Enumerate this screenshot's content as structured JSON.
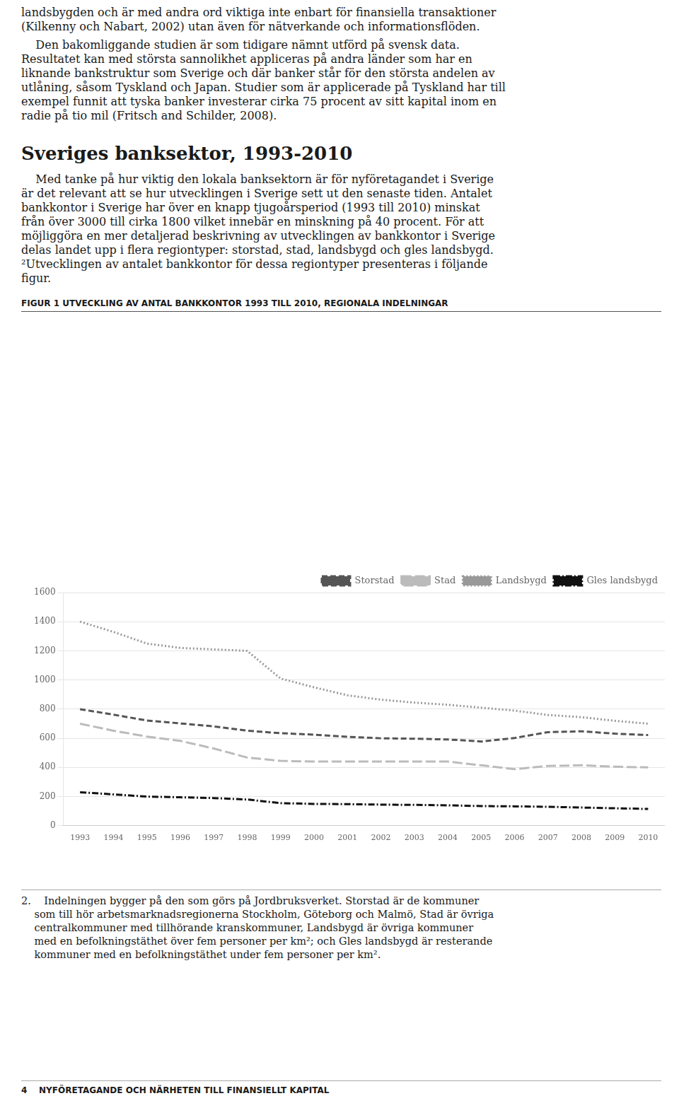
{
  "p1_lines": [
    "landsbygden och är med andra ord viktiga inte enbart för finansiella transaktioner",
    "(Kilkenny och Nabart, 2002) utan även för nätverkande och informationsflöden."
  ],
  "p2_lines": [
    "    Den bakomliggande studien är som tidigare nämnt utförd på svensk data.",
    "Resultatet kan med största sannolikhet appliceras på andra länder som har en",
    "liknande bankstruktur som Sverige och där banker står för den största andelen av",
    "utlåning, såsom Tyskland och Japan. Studier som är applicerade på Tyskland har till",
    "exempel funnit att tyska banker investerar cirka 75 procent av sitt kapital inom en",
    "radie på tio mil (Fritsch and Schilder, 2008)."
  ],
  "section_title": "Sveriges banksektor, 1993-2010",
  "p3_lines": [
    "    Med tanke på hur viktig den lokala banksektorn är för nyföretagandet i Sverige",
    "är det relevant att se hur utvecklingen i Sverige sett ut den senaste tiden. Antalet",
    "bankkontor i Sverige har över en knapp tjugoårsperiod (1993 till 2010) minskat",
    "från över 3000 till cirka 1800 vilket innebär en minskning på 40 procent. För att",
    "möjliggöra en mer detaljerad beskrivning av utvecklingen av bankkontor i Sverige",
    "delas landet upp i flera regiontyper: storstad, stad, landsbygd och gles landsbygd.",
    "²Utvecklingen av antalet bankkontor för dessa regiontyper presenteras i följande",
    "figur."
  ],
  "fn_lines": [
    "2.    Indelningen bygger på den som görs på Jordbruksverket. Storstad är de kommuner",
    "    som till hör arbetsmarknadsregionerna Stockholm, Göteborg och Malmö, Stad är övriga",
    "    centralkommuner med tillhörande kranskommuner, Landsbygd är övriga kommuner",
    "    med en befolkningstäthet över fem personer per km²; och Gles landsbygd är resterande",
    "    kommuner med en befolkningstäthet under fem personer per km²."
  ],
  "footer": "4    NYFÖRETAGANDE OCH NÄRHETEN TILL FINANSIELLT KAPITAL",
  "chart_data": {
    "type": "line",
    "title": "FIGUR 1 UTVECKLING AV ANTAL BANKKONTOR 1993 TILL 2010, REGIONALA INDELNINGAR",
    "x": [
      1993,
      1994,
      1995,
      1996,
      1997,
      1998,
      1999,
      2000,
      2001,
      2002,
      2003,
      2004,
      2005,
      2006,
      2007,
      2008,
      2009,
      2010
    ],
    "series": [
      {
        "name": "Storstad",
        "color": "#555555",
        "line_style": "dashed",
        "values": [
          800,
          762,
          722,
          702,
          682,
          652,
          635,
          625,
          610,
          600,
          597,
          592,
          578,
          602,
          642,
          648,
          632,
          622
        ]
      },
      {
        "name": "Stad",
        "color": "#bbbbbb",
        "line_style": "long_dashed",
        "values": [
          700,
          652,
          612,
          582,
          530,
          468,
          445,
          440,
          440,
          440,
          440,
          440,
          415,
          388,
          410,
          415,
          405,
          400
        ]
      },
      {
        "name": "Landsbygd",
        "color": "#999999",
        "line_style": "dotted",
        "values": [
          1400,
          1330,
          1250,
          1220,
          1210,
          1200,
          1010,
          950,
          895,
          865,
          845,
          830,
          810,
          790,
          760,
          745,
          720,
          700
        ]
      },
      {
        "name": "Gles landsbygd",
        "color": "#111111",
        "line_style": "dashdot",
        "values": [
          230,
          215,
          200,
          195,
          190,
          180,
          155,
          150,
          148,
          145,
          143,
          140,
          135,
          133,
          130,
          125,
          120,
          115
        ]
      }
    ],
    "xlim": [
      1992.5,
      2010.5
    ],
    "xticks": [
      1993,
      1994,
      1995,
      1996,
      1997,
      1998,
      1999,
      2000,
      2001,
      2002,
      2003,
      2004,
      2005,
      2006,
      2007,
      2008,
      2009,
      2010
    ],
    "ylim": [
      0,
      1600
    ],
    "yticks": [
      0,
      200,
      400,
      600,
      800,
      1000,
      1200,
      1400,
      1600
    ],
    "grid": "y",
    "legend": "upper right"
  }
}
